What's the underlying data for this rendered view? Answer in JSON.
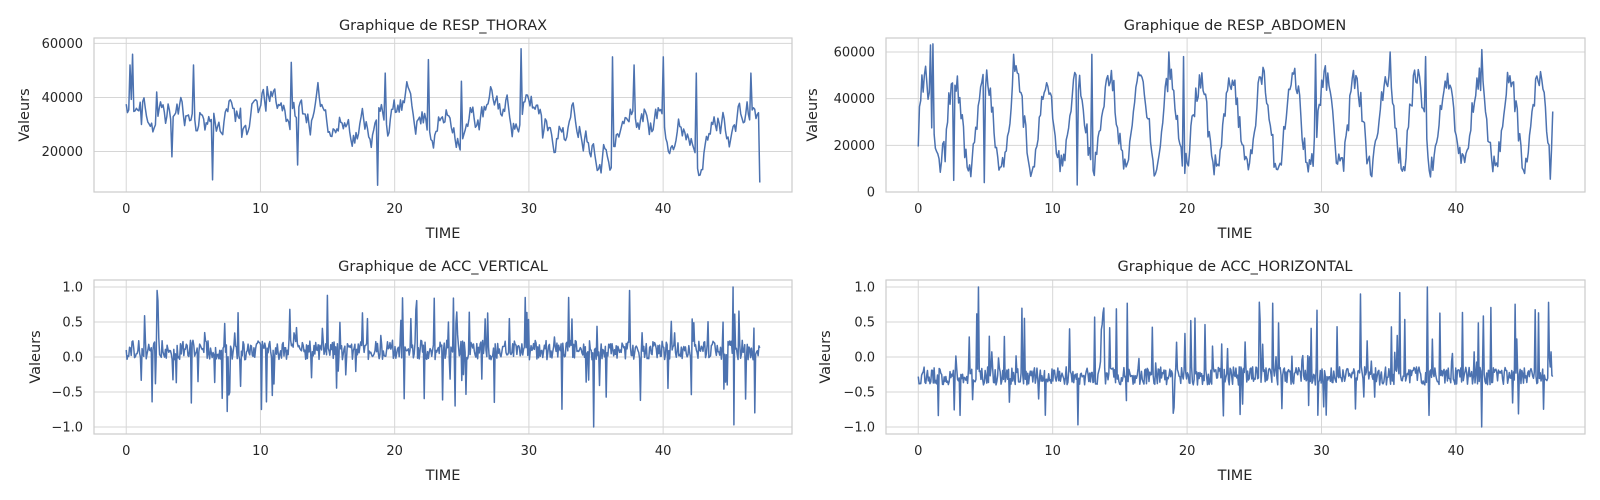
{
  "figure": {
    "background": "#ffffff",
    "line_color": "#4c72b0",
    "grid_color": "#d6d6d6",
    "frame_color": "#cccccc"
  },
  "chart_data": [
    {
      "type": "line",
      "title": "Graphique de RESP_THORAX",
      "xlabel": "TIME",
      "ylabel": "Valeurs",
      "xlim": [
        -2.4,
        49.6
      ],
      "ylim": [
        5000,
        62000
      ],
      "xticks": [
        0,
        10,
        20,
        30,
        40
      ],
      "xtick_labels": [
        "0",
        "10",
        "20",
        "30",
        "40"
      ],
      "yticks": [
        20000,
        40000,
        60000
      ],
      "ytick_labels": [
        "20000",
        "40000",
        "60000"
      ],
      "grid": true,
      "signal": {
        "t_end": 47.2,
        "samples": 500,
        "mean": 34000,
        "amp": 10500,
        "min": 7000,
        "max": 58500,
        "shape": "smooth",
        "seed": 11,
        "start": 37500,
        "end": 8500,
        "anchors": [
          [
            0.3,
            52000
          ],
          [
            0.45,
            56000
          ],
          [
            1.1,
            30000
          ],
          [
            2.3,
            42000
          ],
          [
            3.4,
            18000
          ],
          [
            5.0,
            52000
          ],
          [
            6.4,
            9500
          ],
          [
            8.5,
            36000
          ],
          [
            10.5,
            44000
          ],
          [
            12.3,
            53000
          ],
          [
            12.8,
            15000
          ],
          [
            18.7,
            7500
          ],
          [
            19.3,
            49000
          ],
          [
            22.5,
            54000
          ],
          [
            25.0,
            46000
          ],
          [
            29.4,
            58000
          ],
          [
            31.0,
            25000
          ],
          [
            36.2,
            55000
          ],
          [
            37.8,
            52000
          ],
          [
            40.0,
            55000
          ],
          [
            42.5,
            49000
          ],
          [
            46.5,
            49000
          ],
          [
            47.2,
            8500
          ]
        ]
      }
    },
    {
      "type": "line",
      "title": "Graphique de RESP_ABDOMEN",
      "xlabel": "TIME",
      "ylabel": "Valeurs",
      "xlim": [
        -2.4,
        49.6
      ],
      "ylim": [
        0,
        66000
      ],
      "xticks": [
        0,
        10,
        20,
        30,
        40
      ],
      "xtick_labels": [
        "0",
        "10",
        "20",
        "30",
        "40"
      ],
      "yticks": [
        0,
        20000,
        40000,
        60000
      ],
      "ytick_labels": [
        "0",
        "20000",
        "40000",
        "60000"
      ],
      "grid": true,
      "signal": {
        "t_end": 47.2,
        "samples": 520,
        "mean": 30000,
        "amp": 19000,
        "min": 3000,
        "max": 63500,
        "shape": "breathing",
        "seed": 23,
        "start": 19500,
        "end": 34500,
        "anchors": [
          [
            0.5,
            50000
          ],
          [
            0.9,
            63000
          ],
          [
            1.1,
            63500
          ],
          [
            2.0,
            13000
          ],
          [
            2.6,
            5000
          ],
          [
            4.9,
            4000
          ],
          [
            7.1,
            59000
          ],
          [
            11.8,
            3000
          ],
          [
            12.9,
            59000
          ],
          [
            18.6,
            60000
          ],
          [
            19.7,
            58000
          ],
          [
            29.6,
            59000
          ],
          [
            30.5,
            51000
          ],
          [
            35.1,
            60000
          ],
          [
            37.7,
            58000
          ],
          [
            41.9,
            61000
          ],
          [
            47.0,
            5500
          ],
          [
            47.2,
            34500
          ]
        ]
      }
    },
    {
      "type": "line",
      "title": "Graphique de ACC_VERTICAL",
      "xlabel": "TIME",
      "ylabel": "Valeurs",
      "xlim": [
        -2.4,
        49.6
      ],
      "ylim": [
        -1.1,
        1.1
      ],
      "xticks": [
        0,
        10,
        20,
        30,
        40
      ],
      "xtick_labels": [
        "0",
        "10",
        "20",
        "30",
        "40"
      ],
      "yticks": [
        -1.0,
        -0.5,
        0.0,
        0.5,
        1.0
      ],
      "ytick_labels": [
        "−1.0",
        "−0.5",
        "0.0",
        "0.5",
        "1.0"
      ],
      "grid": true,
      "signal": {
        "t_end": 47.2,
        "samples": 760,
        "mean": 0.1,
        "amp": 0.14,
        "min": -1.0,
        "max": 1.0,
        "shape": "spiky",
        "seed": 37,
        "start": 0.1,
        "end": 0.13,
        "anchors": [
          [
            2.3,
            0.95
          ],
          [
            10.1,
            -0.75
          ],
          [
            15.0,
            0.88
          ],
          [
            34.8,
            -1.0
          ],
          [
            37.5,
            0.95
          ],
          [
            45.2,
            1.0
          ],
          [
            45.3,
            -0.97
          ]
        ]
      }
    },
    {
      "type": "line",
      "title": "Graphique de ACC_HORIZONTAL",
      "xlabel": "TIME",
      "ylabel": "Valeurs",
      "xlim": [
        -2.4,
        49.6
      ],
      "ylim": [
        -1.1,
        1.1
      ],
      "xticks": [
        0,
        10,
        20,
        30,
        40
      ],
      "xtick_labels": [
        "0",
        "10",
        "20",
        "30",
        "40"
      ],
      "yticks": [
        -1.0,
        -0.5,
        0.0,
        0.5,
        1.0
      ],
      "ytick_labels": [
        "−1.0",
        "−0.5",
        "0.0",
        "0.5",
        "1.0"
      ],
      "grid": true,
      "signal": {
        "t_end": 47.2,
        "samples": 760,
        "mean": -0.27,
        "amp": 0.13,
        "min": -1.0,
        "max": 1.0,
        "shape": "spiky-up",
        "seed": 53,
        "start": -0.28,
        "end": -0.28,
        "anchors": [
          [
            4.5,
            1.0
          ],
          [
            11.9,
            -0.97
          ],
          [
            13.8,
            0.7
          ],
          [
            32.9,
            0.9
          ],
          [
            35.8,
            0.92
          ],
          [
            37.9,
            1.0
          ],
          [
            41.9,
            -1.0
          ],
          [
            46.9,
            0.78
          ]
        ]
      }
    }
  ]
}
